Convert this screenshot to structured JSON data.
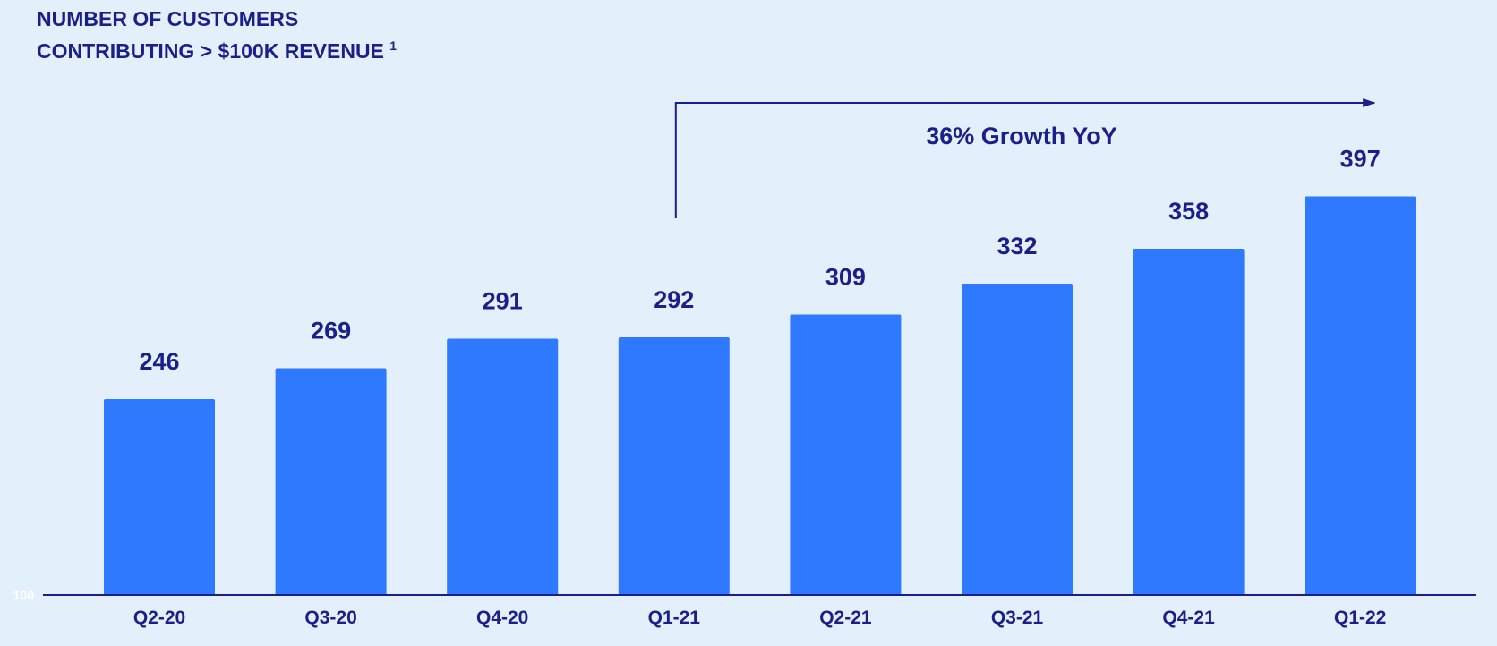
{
  "chart_data": {
    "type": "bar",
    "title_line1": "NUMBER OF CUSTOMERS",
    "title_line2": "CONTRIBUTING  > $100K REVENUE",
    "title_footnote": "1",
    "categories": [
      "Q2-20",
      "Q3-20",
      "Q4-20",
      "Q1-21",
      "Q2-21",
      "Q3-21",
      "Q4-21",
      "Q1-22"
    ],
    "values": [
      246,
      269,
      291,
      292,
      309,
      332,
      358,
      397
    ],
    "axis_baseline_label": "100",
    "ylim": [
      100,
      420
    ],
    "grid": false,
    "legend": "none",
    "annotation": {
      "text": "36% Growth YoY",
      "from_category": "Q1-21",
      "to_category": "Q1-22"
    }
  },
  "colors": {
    "background": "#e4effc",
    "bar": "#2e79ff",
    "text": "#1a1f8a",
    "axis": "#1a1f8a",
    "baseline_label": "#ffffff"
  }
}
